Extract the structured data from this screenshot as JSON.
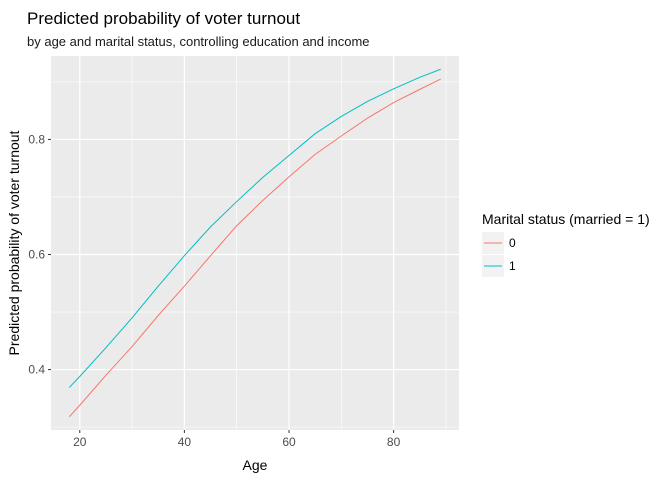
{
  "chart_data": {
    "type": "line",
    "title": "Predicted probability of voter turnout",
    "subtitle": "by age and marital status, controlling education and income",
    "xlabel": "Age",
    "ylabel": "Predicted probability of voter turnout",
    "xlim": [
      14.5,
      92.5
    ],
    "ylim": [
      0.295,
      0.945
    ],
    "x_ticks": [
      20,
      40,
      60,
      80
    ],
    "x_tick_labels": [
      "20",
      "40",
      "60",
      "80"
    ],
    "y_ticks": [
      0.4,
      0.6,
      0.8
    ],
    "y_tick_labels": [
      "0.4",
      "0.6",
      "0.8"
    ],
    "grid": true,
    "legend": {
      "title": "Marital status (married = 1)",
      "position": "right"
    },
    "series": [
      {
        "name": "0",
        "color": "#F8766D",
        "x": [
          18,
          20,
          25,
          30,
          35,
          40,
          45,
          50,
          55,
          60,
          65,
          70,
          75,
          80,
          85,
          89
        ],
        "y": [
          0.318,
          0.338,
          0.39,
          0.44,
          0.494,
          0.545,
          0.598,
          0.65,
          0.694,
          0.735,
          0.774,
          0.806,
          0.837,
          0.864,
          0.887,
          0.905
        ]
      },
      {
        "name": "1",
        "color": "#00BFC4",
        "x": [
          18,
          20,
          25,
          30,
          35,
          40,
          45,
          50,
          55,
          60,
          65,
          70,
          75,
          80,
          85,
          89
        ],
        "y": [
          0.369,
          0.388,
          0.438,
          0.49,
          0.545,
          0.598,
          0.648,
          0.692,
          0.734,
          0.772,
          0.81,
          0.84,
          0.866,
          0.888,
          0.908,
          0.922
        ]
      }
    ]
  }
}
